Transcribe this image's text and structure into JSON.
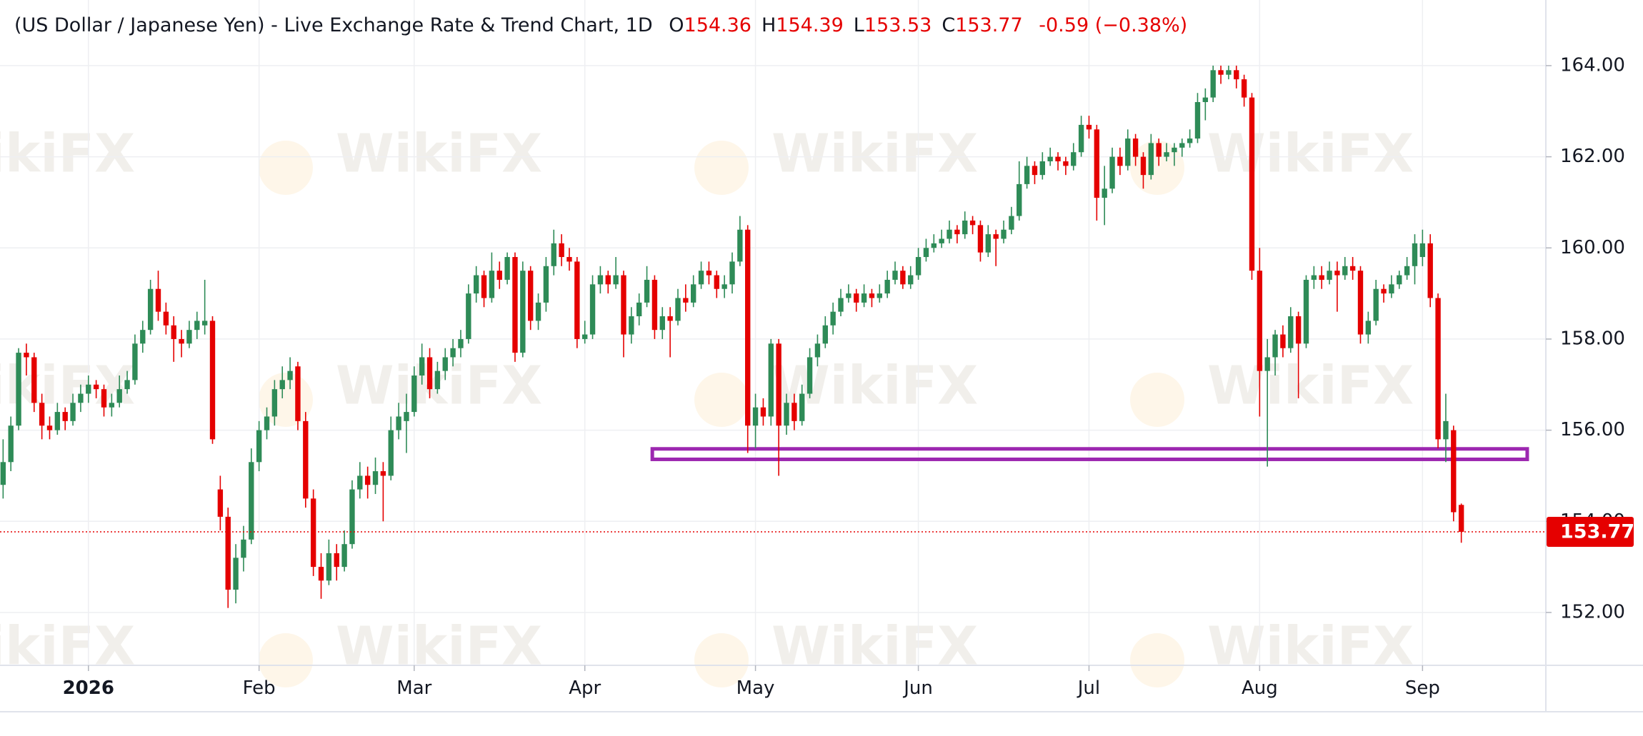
{
  "chart_data": {
    "type": "candlestick",
    "title": "(US Dollar / Japanese Yen) - Live Exchange Rate & Trend Chart, 1D",
    "legend": {
      "labels": [
        "O",
        "H",
        "L",
        "C"
      ],
      "values": [
        154.36,
        154.39,
        153.53,
        153.77
      ]
    },
    "change": -0.59,
    "change_pct": {
      "value": -0.38,
      "label": "(−0.38%)"
    },
    "last_price": 153.77,
    "up_color": "#2e8b57",
    "down_color": "#e50000",
    "grid": true,
    "watermark": "WikiFX",
    "support_zone": {
      "ylim": [
        155.36,
        155.59
      ],
      "xlim": [
        83.7,
        196.5
      ],
      "color": "#9c27b0"
    },
    "xlim": [
      -0.4,
      198.9
    ],
    "xticks": [
      {
        "value": 11,
        "label": "2026"
      },
      {
        "value": 33,
        "label": "Feb"
      },
      {
        "value": 53,
        "label": "Mar"
      },
      {
        "value": 75,
        "label": "Apr"
      },
      {
        "value": 97,
        "label": "May"
      },
      {
        "value": 118,
        "label": "Jun"
      },
      {
        "value": 140,
        "label": "Jul"
      },
      {
        "value": 162,
        "label": "Aug"
      },
      {
        "value": 183,
        "label": "Sep"
      }
    ],
    "ylim": [
      150.84,
      165.44
    ],
    "yticks": [
      {
        "value": 152,
        "label": "152.00"
      },
      {
        "value": 154,
        "label": "154.00"
      },
      {
        "value": 156,
        "label": "156.00"
      },
      {
        "value": 158,
        "label": "158.00"
      },
      {
        "value": 160,
        "label": "160.00"
      },
      {
        "value": 162,
        "label": "162.00"
      },
      {
        "value": 164,
        "label": "164.00"
      }
    ],
    "ohlc": [
      [
        154.8,
        155.8,
        154.5,
        155.3
      ],
      [
        155.3,
        156.3,
        155.1,
        156.1
      ],
      [
        156.1,
        157.8,
        156.0,
        157.7
      ],
      [
        157.7,
        157.9,
        157.2,
        157.6
      ],
      [
        157.6,
        157.7,
        156.4,
        156.6
      ],
      [
        156.6,
        156.8,
        155.8,
        156.1
      ],
      [
        156.1,
        156.3,
        155.8,
        156.0
      ],
      [
        156.0,
        156.6,
        155.9,
        156.4
      ],
      [
        156.4,
        156.5,
        156.0,
        156.2
      ],
      [
        156.2,
        156.8,
        156.1,
        156.6
      ],
      [
        156.6,
        157.0,
        156.4,
        156.8
      ],
      [
        156.8,
        157.2,
        156.6,
        157.0
      ],
      [
        157.0,
        157.1,
        156.7,
        156.9
      ],
      [
        156.9,
        157.0,
        156.3,
        156.5
      ],
      [
        156.5,
        156.8,
        156.3,
        156.6
      ],
      [
        156.6,
        157.2,
        156.5,
        156.9
      ],
      [
        156.9,
        157.3,
        156.8,
        157.1
      ],
      [
        157.1,
        158.1,
        157.0,
        157.9
      ],
      [
        157.9,
        158.4,
        157.7,
        158.2
      ],
      [
        158.2,
        159.3,
        158.1,
        159.1
      ],
      [
        159.1,
        159.5,
        158.4,
        158.6
      ],
      [
        158.6,
        158.8,
        158.1,
        158.3
      ],
      [
        158.3,
        158.5,
        157.5,
        158.0
      ],
      [
        158.0,
        158.2,
        157.6,
        157.9
      ],
      [
        157.9,
        158.4,
        157.8,
        158.2
      ],
      [
        158.2,
        158.6,
        158.0,
        158.4
      ],
      [
        158.3,
        159.3,
        158.1,
        158.4
      ],
      [
        158.4,
        158.5,
        155.7,
        155.8
      ],
      [
        154.7,
        155.0,
        153.8,
        154.1
      ],
      [
        154.1,
        154.3,
        152.1,
        152.5
      ],
      [
        152.5,
        153.5,
        152.2,
        153.2
      ],
      [
        153.2,
        153.9,
        152.9,
        153.6
      ],
      [
        153.6,
        155.6,
        153.5,
        155.3
      ],
      [
        155.3,
        156.2,
        155.1,
        156.0
      ],
      [
        156.0,
        156.5,
        155.8,
        156.3
      ],
      [
        156.3,
        157.1,
        156.1,
        156.9
      ],
      [
        156.9,
        157.4,
        156.7,
        157.1
      ],
      [
        157.1,
        157.6,
        156.9,
        157.3
      ],
      [
        157.4,
        157.5,
        156.0,
        156.2
      ],
      [
        156.2,
        156.4,
        154.3,
        154.5
      ],
      [
        154.5,
        154.7,
        152.8,
        153.0
      ],
      [
        153.0,
        153.3,
        152.3,
        152.7
      ],
      [
        152.7,
        153.6,
        152.6,
        153.3
      ],
      [
        153.3,
        153.5,
        152.7,
        153.0
      ],
      [
        153.0,
        153.8,
        152.9,
        153.5
      ],
      [
        153.5,
        154.9,
        153.4,
        154.7
      ],
      [
        154.7,
        155.3,
        154.5,
        155.0
      ],
      [
        155.0,
        155.2,
        154.5,
        154.8
      ],
      [
        154.8,
        155.4,
        154.6,
        155.1
      ],
      [
        155.1,
        155.3,
        154.0,
        155.0
      ],
      [
        155.0,
        156.3,
        154.9,
        156.0
      ],
      [
        156.0,
        156.6,
        155.8,
        156.3
      ],
      [
        156.2,
        156.8,
        155.5,
        156.4
      ],
      [
        156.4,
        157.4,
        156.3,
        157.2
      ],
      [
        157.2,
        157.9,
        157.0,
        157.6
      ],
      [
        157.6,
        157.8,
        156.7,
        156.9
      ],
      [
        156.9,
        157.5,
        156.8,
        157.3
      ],
      [
        157.3,
        157.8,
        157.1,
        157.6
      ],
      [
        157.6,
        158.0,
        157.4,
        157.8
      ],
      [
        157.8,
        158.2,
        157.6,
        158.0
      ],
      [
        158.0,
        159.2,
        157.9,
        159.0
      ],
      [
        159.0,
        159.6,
        158.8,
        159.4
      ],
      [
        159.4,
        159.5,
        158.7,
        158.9
      ],
      [
        158.9,
        159.9,
        158.8,
        159.5
      ],
      [
        159.5,
        159.7,
        159.1,
        159.3
      ],
      [
        159.3,
        159.9,
        159.2,
        159.8
      ],
      [
        159.8,
        159.9,
        157.5,
        157.7
      ],
      [
        157.7,
        159.7,
        157.6,
        159.5
      ],
      [
        159.5,
        159.6,
        158.2,
        158.4
      ],
      [
        158.4,
        159.0,
        158.2,
        158.8
      ],
      [
        158.8,
        159.8,
        158.6,
        159.6
      ],
      [
        159.6,
        160.4,
        159.4,
        160.1
      ],
      [
        160.1,
        160.3,
        159.6,
        159.8
      ],
      [
        159.8,
        160.0,
        159.5,
        159.7
      ],
      [
        159.7,
        159.8,
        157.8,
        158.0
      ],
      [
        158.0,
        158.4,
        157.9,
        158.1
      ],
      [
        158.1,
        159.4,
        158.0,
        159.2
      ],
      [
        159.2,
        159.6,
        159.0,
        159.4
      ],
      [
        159.4,
        159.5,
        159.0,
        159.2
      ],
      [
        159.2,
        159.8,
        159.1,
        159.4
      ],
      [
        159.4,
        159.5,
        157.6,
        158.1
      ],
      [
        158.1,
        158.7,
        157.9,
        158.5
      ],
      [
        158.5,
        159.0,
        158.3,
        158.8
      ],
      [
        158.8,
        159.6,
        158.7,
        159.3
      ],
      [
        159.3,
        159.4,
        158.0,
        158.2
      ],
      [
        158.2,
        158.7,
        158.0,
        158.5
      ],
      [
        158.5,
        158.7,
        157.6,
        158.4
      ],
      [
        158.4,
        159.1,
        158.3,
        158.9
      ],
      [
        158.9,
        159.2,
        158.6,
        158.8
      ],
      [
        158.8,
        159.4,
        158.7,
        159.2
      ],
      [
        159.2,
        159.7,
        159.1,
        159.5
      ],
      [
        159.5,
        159.7,
        159.2,
        159.4
      ],
      [
        159.4,
        159.5,
        158.9,
        159.1
      ],
      [
        159.1,
        159.4,
        158.9,
        159.2
      ],
      [
        159.2,
        159.9,
        159.0,
        159.7
      ],
      [
        159.7,
        160.7,
        159.6,
        160.4
      ],
      [
        160.4,
        160.5,
        155.5,
        156.1
      ],
      [
        156.1,
        156.8,
        155.6,
        156.5
      ],
      [
        156.5,
        156.7,
        156.1,
        156.3
      ],
      [
        156.3,
        158.0,
        156.1,
        157.9
      ],
      [
        157.9,
        158.0,
        155.0,
        156.1
      ],
      [
        156.1,
        156.8,
        155.9,
        156.6
      ],
      [
        156.6,
        156.8,
        156.0,
        156.2
      ],
      [
        156.2,
        157.0,
        156.1,
        156.8
      ],
      [
        156.8,
        157.8,
        156.7,
        157.6
      ],
      [
        157.6,
        158.1,
        157.4,
        157.9
      ],
      [
        157.9,
        158.5,
        157.8,
        158.3
      ],
      [
        158.3,
        158.8,
        158.1,
        158.6
      ],
      [
        158.6,
        159.1,
        158.5,
        158.9
      ],
      [
        158.9,
        159.2,
        158.8,
        159.0
      ],
      [
        159.0,
        159.1,
        158.6,
        158.8
      ],
      [
        158.8,
        159.2,
        158.7,
        159.0
      ],
      [
        159.0,
        159.1,
        158.7,
        158.9
      ],
      [
        158.9,
        159.2,
        158.8,
        159.0
      ],
      [
        159.0,
        159.5,
        158.9,
        159.3
      ],
      [
        159.3,
        159.7,
        159.2,
        159.5
      ],
      [
        159.5,
        159.6,
        159.1,
        159.2
      ],
      [
        159.2,
        159.6,
        159.1,
        159.4
      ],
      [
        159.4,
        160.0,
        159.3,
        159.8
      ],
      [
        159.8,
        160.2,
        159.7,
        160.0
      ],
      [
        160.0,
        160.3,
        159.9,
        160.1
      ],
      [
        160.1,
        160.4,
        160.0,
        160.2
      ],
      [
        160.2,
        160.6,
        160.1,
        160.4
      ],
      [
        160.4,
        160.5,
        160.1,
        160.3
      ],
      [
        160.3,
        160.8,
        160.2,
        160.6
      ],
      [
        160.6,
        160.7,
        160.3,
        160.5
      ],
      [
        160.5,
        160.6,
        159.7,
        159.9
      ],
      [
        159.9,
        160.5,
        159.8,
        160.3
      ],
      [
        160.3,
        160.4,
        159.6,
        160.2
      ],
      [
        160.2,
        160.6,
        160.1,
        160.4
      ],
      [
        160.4,
        160.9,
        160.3,
        160.7
      ],
      [
        160.7,
        161.9,
        160.6,
        161.4
      ],
      [
        161.4,
        162.0,
        161.3,
        161.8
      ],
      [
        161.8,
        161.9,
        161.4,
        161.6
      ],
      [
        161.6,
        162.1,
        161.5,
        161.9
      ],
      [
        161.9,
        162.2,
        161.8,
        162.0
      ],
      [
        162.0,
        162.1,
        161.7,
        161.9
      ],
      [
        161.9,
        162.0,
        161.6,
        161.8
      ],
      [
        161.8,
        162.3,
        161.7,
        162.1
      ],
      [
        162.1,
        162.9,
        162.0,
        162.7
      ],
      [
        162.7,
        162.9,
        162.4,
        162.6
      ],
      [
        162.6,
        162.7,
        160.6,
        161.1
      ],
      [
        161.1,
        161.8,
        160.5,
        161.3
      ],
      [
        161.3,
        162.2,
        161.2,
        162.0
      ],
      [
        162.0,
        162.2,
        161.6,
        161.8
      ],
      [
        161.8,
        162.6,
        161.7,
        162.4
      ],
      [
        162.4,
        162.5,
        161.8,
        162.0
      ],
      [
        162.0,
        162.1,
        161.3,
        161.6
      ],
      [
        161.6,
        162.5,
        161.5,
        162.3
      ],
      [
        162.3,
        162.4,
        161.8,
        162.0
      ],
      [
        162.0,
        162.3,
        161.9,
        162.1
      ],
      [
        162.1,
        162.3,
        161.8,
        162.2
      ],
      [
        162.2,
        162.4,
        162.0,
        162.3
      ],
      [
        162.3,
        162.6,
        162.2,
        162.4
      ],
      [
        162.4,
        163.4,
        162.3,
        163.2
      ],
      [
        163.2,
        163.5,
        162.8,
        163.3
      ],
      [
        163.3,
        164.0,
        163.2,
        163.9
      ],
      [
        163.9,
        164.0,
        163.6,
        163.8
      ],
      [
        163.8,
        164.0,
        163.7,
        163.9
      ],
      [
        163.9,
        164.0,
        163.5,
        163.7
      ],
      [
        163.7,
        163.8,
        163.1,
        163.3
      ],
      [
        163.3,
        163.4,
        159.3,
        159.5
      ],
      [
        159.5,
        160.0,
        156.3,
        157.3
      ],
      [
        157.3,
        158.0,
        155.2,
        157.6
      ],
      [
        157.6,
        158.2,
        157.2,
        158.1
      ],
      [
        158.1,
        158.3,
        157.6,
        157.8
      ],
      [
        157.8,
        158.7,
        157.7,
        158.5
      ],
      [
        158.5,
        158.6,
        156.7,
        157.9
      ],
      [
        157.9,
        159.4,
        157.8,
        159.3
      ],
      [
        159.3,
        159.6,
        159.1,
        159.4
      ],
      [
        159.4,
        159.6,
        159.1,
        159.3
      ],
      [
        159.3,
        159.7,
        159.2,
        159.5
      ],
      [
        159.5,
        159.7,
        158.6,
        159.4
      ],
      [
        159.4,
        159.8,
        159.3,
        159.6
      ],
      [
        159.6,
        159.8,
        159.3,
        159.5
      ],
      [
        159.5,
        159.6,
        157.9,
        158.1
      ],
      [
        158.1,
        158.6,
        157.9,
        158.4
      ],
      [
        158.4,
        159.3,
        158.3,
        159.1
      ],
      [
        159.1,
        159.2,
        158.8,
        159.0
      ],
      [
        159.0,
        159.4,
        158.9,
        159.2
      ],
      [
        159.2,
        159.5,
        159.1,
        159.4
      ],
      [
        159.4,
        159.8,
        159.3,
        159.6
      ],
      [
        159.6,
        160.3,
        159.2,
        160.1
      ],
      [
        159.8,
        160.4,
        159.6,
        160.1
      ],
      [
        160.1,
        160.3,
        158.7,
        158.9
      ],
      [
        158.9,
        159.0,
        155.6,
        155.8
      ],
      [
        155.8,
        156.8,
        155.3,
        156.2
      ],
      [
        156.0,
        156.1,
        154.0,
        154.2
      ],
      [
        154.36,
        154.39,
        153.53,
        153.77
      ]
    ]
  }
}
